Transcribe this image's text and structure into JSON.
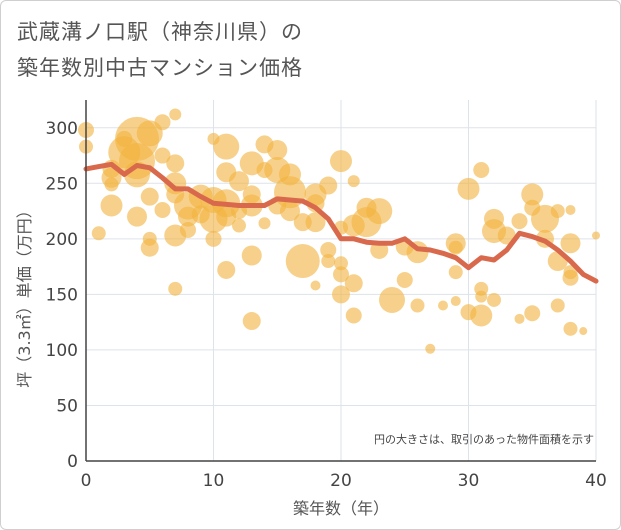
{
  "title_line1": "武蔵溝ノ口駅（神奈川県）の",
  "title_line2": "築年数別中古マンション価格",
  "chart_data": {
    "type": "scatter",
    "xlabel": "築年数（年）",
    "ylabel": "坪（3.3㎡）単価（万円）",
    "xlim": [
      0,
      40
    ],
    "ylim": [
      0,
      325
    ],
    "xticks": [
      "0",
      "10",
      "20",
      "30",
      "40"
    ],
    "yticks": [
      "0",
      "50",
      "100",
      "150",
      "200",
      "250",
      "300"
    ],
    "grid": true,
    "note": "円の大きさは、取引のあった物件面積を示す",
    "colors": {
      "bubble": "#f2b33d",
      "line": "#d9694c",
      "grid": "#dde3ea",
      "axis": "#444444"
    },
    "series": [
      {
        "kind": "bubbles",
        "points": [
          {
            "x": 0,
            "y": 298,
            "s": 8
          },
          {
            "x": 0,
            "y": 283,
            "s": 7
          },
          {
            "x": 1,
            "y": 205,
            "s": 7
          },
          {
            "x": 2,
            "y": 263,
            "s": 9
          },
          {
            "x": 2,
            "y": 255,
            "s": 10
          },
          {
            "x": 2,
            "y": 230,
            "s": 11
          },
          {
            "x": 2,
            "y": 249,
            "s": 7
          },
          {
            "x": 3,
            "y": 278,
            "s": 16
          },
          {
            "x": 3,
            "y": 290,
            "s": 8
          },
          {
            "x": 4,
            "y": 290,
            "s": 22
          },
          {
            "x": 4,
            "y": 270,
            "s": 18
          },
          {
            "x": 4,
            "y": 258,
            "s": 13
          },
          {
            "x": 4,
            "y": 220,
            "s": 10
          },
          {
            "x": 5,
            "y": 295,
            "s": 13
          },
          {
            "x": 5,
            "y": 238,
            "s": 9
          },
          {
            "x": 5,
            "y": 200,
            "s": 7
          },
          {
            "x": 5,
            "y": 192,
            "s": 9
          },
          {
            "x": 6,
            "y": 305,
            "s": 8
          },
          {
            "x": 6,
            "y": 275,
            "s": 8
          },
          {
            "x": 6,
            "y": 226,
            "s": 8
          },
          {
            "x": 7,
            "y": 312,
            "s": 6
          },
          {
            "x": 7,
            "y": 268,
            "s": 9
          },
          {
            "x": 7,
            "y": 250,
            "s": 11
          },
          {
            "x": 7,
            "y": 240,
            "s": 9
          },
          {
            "x": 7,
            "y": 203,
            "s": 11
          },
          {
            "x": 7,
            "y": 155,
            "s": 7
          },
          {
            "x": 8,
            "y": 230,
            "s": 14
          },
          {
            "x": 8,
            "y": 220,
            "s": 10
          },
          {
            "x": 8,
            "y": 208,
            "s": 8
          },
          {
            "x": 9,
            "y": 238,
            "s": 12
          },
          {
            "x": 9,
            "y": 222,
            "s": 9
          },
          {
            "x": 10,
            "y": 290,
            "s": 6
          },
          {
            "x": 10,
            "y": 235,
            "s": 13
          },
          {
            "x": 10,
            "y": 218,
            "s": 14
          },
          {
            "x": 10,
            "y": 200,
            "s": 8
          },
          {
            "x": 11,
            "y": 283,
            "s": 13
          },
          {
            "x": 11,
            "y": 260,
            "s": 10
          },
          {
            "x": 11,
            "y": 232,
            "s": 14
          },
          {
            "x": 11,
            "y": 220,
            "s": 10
          },
          {
            "x": 11,
            "y": 172,
            "s": 9
          },
          {
            "x": 12,
            "y": 252,
            "s": 10
          },
          {
            "x": 12,
            "y": 225,
            "s": 8
          },
          {
            "x": 12,
            "y": 212,
            "s": 7
          },
          {
            "x": 13,
            "y": 268,
            "s": 12
          },
          {
            "x": 13,
            "y": 240,
            "s": 9
          },
          {
            "x": 13,
            "y": 230,
            "s": 11
          },
          {
            "x": 13,
            "y": 185,
            "s": 10
          },
          {
            "x": 13,
            "y": 126,
            "s": 9
          },
          {
            "x": 14,
            "y": 285,
            "s": 9
          },
          {
            "x": 14,
            "y": 262,
            "s": 8
          },
          {
            "x": 14,
            "y": 214,
            "s": 6
          },
          {
            "x": 15,
            "y": 280,
            "s": 10
          },
          {
            "x": 15,
            "y": 262,
            "s": 13
          },
          {
            "x": 15,
            "y": 230,
            "s": 9
          },
          {
            "x": 16,
            "y": 258,
            "s": 11
          },
          {
            "x": 16,
            "y": 242,
            "s": 16
          },
          {
            "x": 16,
            "y": 225,
            "s": 10
          },
          {
            "x": 17,
            "y": 215,
            "s": 9
          },
          {
            "x": 17,
            "y": 180,
            "s": 17
          },
          {
            "x": 18,
            "y": 240,
            "s": 11
          },
          {
            "x": 18,
            "y": 232,
            "s": 9
          },
          {
            "x": 18,
            "y": 215,
            "s": 10
          },
          {
            "x": 18,
            "y": 158,
            "s": 5
          },
          {
            "x": 19,
            "y": 248,
            "s": 9
          },
          {
            "x": 19,
            "y": 190,
            "s": 8
          },
          {
            "x": 19,
            "y": 180,
            "s": 7
          },
          {
            "x": 20,
            "y": 270,
            "s": 11
          },
          {
            "x": 20,
            "y": 210,
            "s": 7
          },
          {
            "x": 20,
            "y": 178,
            "s": 7
          },
          {
            "x": 20,
            "y": 168,
            "s": 8
          },
          {
            "x": 20,
            "y": 150,
            "s": 9
          },
          {
            "x": 21,
            "y": 252,
            "s": 6
          },
          {
            "x": 21,
            "y": 212,
            "s": 11
          },
          {
            "x": 21,
            "y": 160,
            "s": 9
          },
          {
            "x": 21,
            "y": 131,
            "s": 8
          },
          {
            "x": 22,
            "y": 228,
            "s": 10
          },
          {
            "x": 22,
            "y": 215,
            "s": 15
          },
          {
            "x": 23,
            "y": 225,
            "s": 13
          },
          {
            "x": 23,
            "y": 190,
            "s": 9
          },
          {
            "x": 24,
            "y": 145,
            "s": 13
          },
          {
            "x": 25,
            "y": 193,
            "s": 9
          },
          {
            "x": 25,
            "y": 163,
            "s": 8
          },
          {
            "x": 26,
            "y": 188,
            "s": 11
          },
          {
            "x": 26,
            "y": 140,
            "s": 7
          },
          {
            "x": 27,
            "y": 101,
            "s": 5
          },
          {
            "x": 28,
            "y": 140,
            "s": 5
          },
          {
            "x": 29,
            "y": 196,
            "s": 10
          },
          {
            "x": 29,
            "y": 192,
            "s": 7
          },
          {
            "x": 29,
            "y": 170,
            "s": 7
          },
          {
            "x": 29,
            "y": 144,
            "s": 5
          },
          {
            "x": 30,
            "y": 245,
            "s": 11
          },
          {
            "x": 30,
            "y": 134,
            "s": 8
          },
          {
            "x": 31,
            "y": 262,
            "s": 8
          },
          {
            "x": 31,
            "y": 155,
            "s": 7
          },
          {
            "x": 31,
            "y": 148,
            "s": 6
          },
          {
            "x": 31,
            "y": 131,
            "s": 11
          },
          {
            "x": 32,
            "y": 218,
            "s": 10
          },
          {
            "x": 32,
            "y": 207,
            "s": 12
          },
          {
            "x": 32,
            "y": 145,
            "s": 7
          },
          {
            "x": 33,
            "y": 203,
            "s": 9
          },
          {
            "x": 34,
            "y": 216,
            "s": 8
          },
          {
            "x": 34,
            "y": 128,
            "s": 5
          },
          {
            "x": 35,
            "y": 240,
            "s": 11
          },
          {
            "x": 35,
            "y": 228,
            "s": 8
          },
          {
            "x": 35,
            "y": 133,
            "s": 8
          },
          {
            "x": 36,
            "y": 218,
            "s": 14
          },
          {
            "x": 36,
            "y": 200,
            "s": 9
          },
          {
            "x": 37,
            "y": 225,
            "s": 7
          },
          {
            "x": 37,
            "y": 180,
            "s": 10
          },
          {
            "x": 37,
            "y": 140,
            "s": 7
          },
          {
            "x": 38,
            "y": 226,
            "s": 5
          },
          {
            "x": 38,
            "y": 196,
            "s": 10
          },
          {
            "x": 38,
            "y": 170,
            "s": 7
          },
          {
            "x": 38,
            "y": 165,
            "s": 8
          },
          {
            "x": 38,
            "y": 119,
            "s": 7
          },
          {
            "x": 39,
            "y": 117,
            "s": 4
          },
          {
            "x": 40,
            "y": 203,
            "s": 4
          }
        ]
      },
      {
        "kind": "line",
        "x": [
          0,
          1,
          2,
          3,
          4,
          5,
          6,
          7,
          8,
          9,
          10,
          11,
          12,
          13,
          14,
          15,
          16,
          17,
          18,
          19,
          20,
          21,
          22,
          23,
          24,
          25,
          26,
          27,
          28,
          29,
          30,
          31,
          32,
          33,
          34,
          35,
          36,
          37,
          38,
          39,
          40
        ],
        "y": [
          263,
          265,
          267,
          258,
          266,
          264,
          255,
          245,
          245,
          238,
          232,
          231,
          230,
          230,
          230,
          236,
          235,
          234,
          228,
          218,
          200,
          200,
          197,
          196,
          196,
          200,
          191,
          190,
          187,
          183,
          174,
          183,
          181,
          190,
          205,
          202,
          198,
          190,
          180,
          168,
          162
        ]
      }
    ]
  }
}
